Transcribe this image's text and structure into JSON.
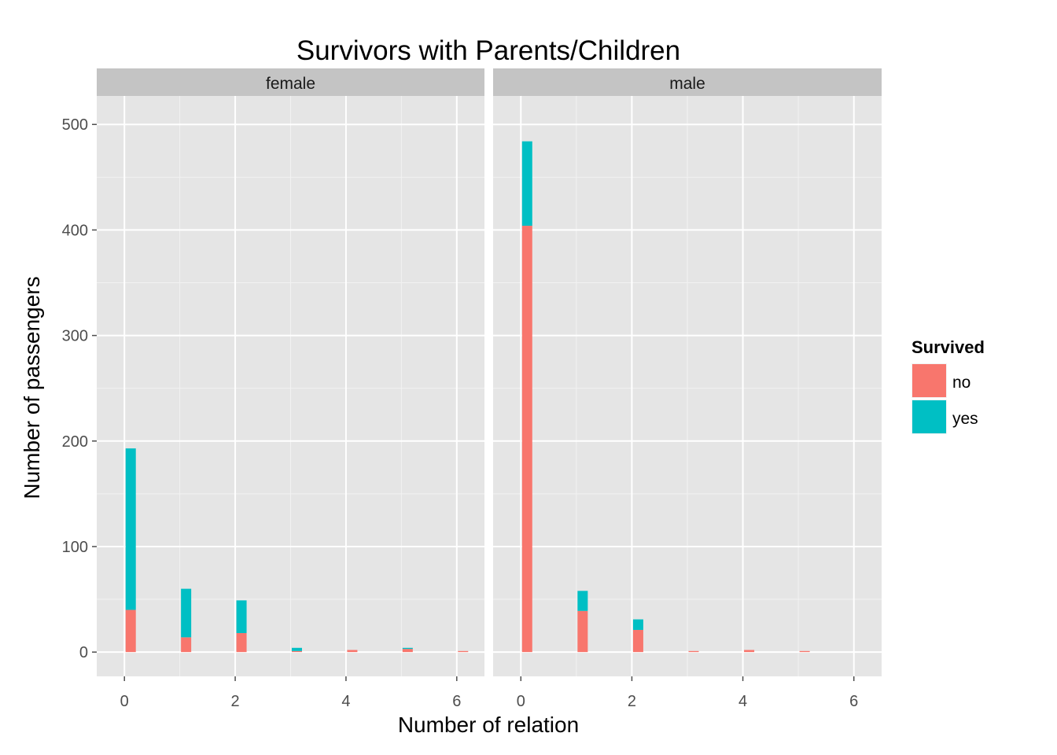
{
  "chart_data": {
    "type": "bar",
    "stacked": true,
    "title": "Survivors with Parents/Children",
    "xlabel": "Number of relation",
    "ylabel": "Number of passengers",
    "xlim": [
      -0.5,
      6.5
    ],
    "ylim": [
      -23,
      527
    ],
    "xticks": [
      0,
      2,
      4,
      6
    ],
    "yticks": [
      0,
      100,
      200,
      300,
      400,
      500
    ],
    "grid": true,
    "legend": {
      "title": "Survived",
      "position": "right",
      "entries": [
        {
          "label": "no",
          "color": "#F8766D"
        },
        {
          "label": "yes",
          "color": "#00BFC4"
        }
      ]
    },
    "facets": [
      {
        "label": "female",
        "categories": [
          0,
          1,
          2,
          3,
          4,
          5,
          6
        ],
        "series": [
          {
            "name": "no",
            "color": "#F8766D",
            "values": [
              40,
              14,
              18,
              1,
              2,
              3,
              1
            ]
          },
          {
            "name": "yes",
            "color": "#00BFC4",
            "values": [
              153,
              46,
              31,
              3,
              0,
              1,
              0
            ]
          }
        ]
      },
      {
        "label": "male",
        "categories": [
          0,
          1,
          2,
          3,
          4,
          5,
          6
        ],
        "series": [
          {
            "name": "no",
            "color": "#F8766D",
            "values": [
              404,
              39,
              21,
              1,
              2,
              1,
              0
            ]
          },
          {
            "name": "yes",
            "color": "#00BFC4",
            "values": [
              80,
              19,
              10,
              0,
              0,
              0,
              0
            ]
          }
        ]
      }
    ]
  }
}
